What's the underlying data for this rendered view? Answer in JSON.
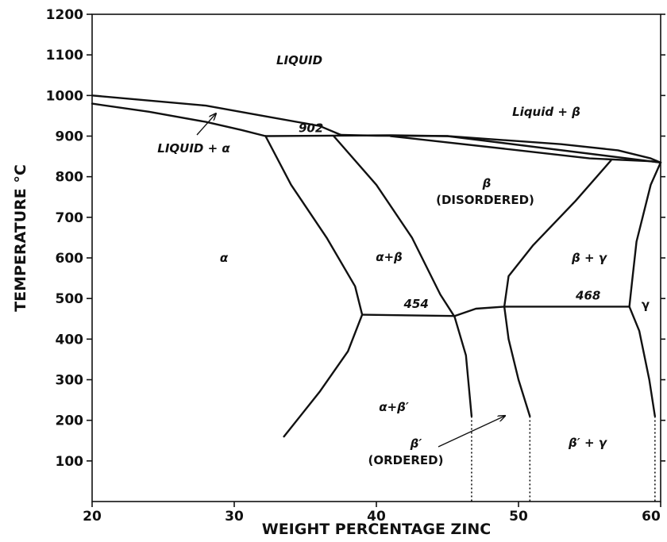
{
  "chart_data": {
    "type": "phase-diagram",
    "xlabel": "WEIGHT PERCENTAGE ZINC",
    "ylabel": "TEMPERATURE °C",
    "xlim": [
      20,
      60
    ],
    "ylim": [
      0,
      1200
    ],
    "x_ticks": [
      20,
      30,
      40,
      50,
      60
    ],
    "y_ticks": [
      100,
      200,
      300,
      400,
      500,
      600,
      700,
      800,
      900,
      1000,
      1100,
      1200
    ],
    "phase_boundaries": [
      {
        "name": "liquidus-alpha",
        "points": [
          [
            20,
            1000
          ],
          [
            28,
            975
          ],
          [
            32,
            950
          ],
          [
            36,
            925
          ],
          [
            37.5,
            903
          ]
        ]
      },
      {
        "name": "solidus-alpha",
        "points": [
          [
            20,
            980
          ],
          [
            24,
            960
          ],
          [
            28,
            935
          ],
          [
            30.5,
            915
          ],
          [
            32.2,
            900
          ]
        ]
      },
      {
        "name": "peritectic-902",
        "points": [
          [
            32.2,
            900
          ],
          [
            41,
            902
          ],
          [
            45,
            900
          ],
          [
            60,
            835
          ]
        ]
      },
      {
        "name": "liquidus-beta",
        "points": [
          [
            37.5,
            903
          ],
          [
            40,
            901
          ],
          [
            45,
            900
          ],
          [
            53,
            880
          ],
          [
            57,
            865
          ],
          [
            59.3,
            845
          ],
          [
            60,
            835
          ]
        ]
      },
      {
        "name": "beta-solidus",
        "points": [
          [
            41,
            900
          ],
          [
            50,
            865
          ],
          [
            55,
            845
          ],
          [
            59.3,
            838
          ],
          [
            60,
            835
          ]
        ]
      },
      {
        "name": "alpha-solvus",
        "points": [
          [
            32.2,
            900
          ],
          [
            34,
            780
          ],
          [
            36.5,
            650
          ],
          [
            38.5,
            530
          ],
          [
            39,
            460
          ],
          [
            38,
            370
          ],
          [
            36,
            270
          ],
          [
            33.5,
            160
          ]
        ]
      },
      {
        "name": "alpha-beta-boundary",
        "points": [
          [
            37,
            900
          ],
          [
            40,
            780
          ],
          [
            42.5,
            650
          ],
          [
            44.5,
            510
          ],
          [
            45.5,
            455
          ],
          [
            46.3,
            360
          ],
          [
            46.7,
            210
          ]
        ]
      },
      {
        "name": "beta-gamma-left",
        "points": [
          [
            56.5,
            840
          ],
          [
            54,
            740
          ],
          [
            51,
            630
          ],
          [
            49.3,
            555
          ],
          [
            49,
            480
          ],
          [
            49.3,
            400
          ],
          [
            50,
            300
          ],
          [
            50.8,
            210
          ]
        ]
      },
      {
        "name": "gamma-right",
        "points": [
          [
            60,
            835
          ],
          [
            59.3,
            780
          ],
          [
            58.3,
            640
          ],
          [
            58,
            545
          ],
          [
            57.8,
            480
          ],
          [
            58.5,
            420
          ],
          [
            59.2,
            300
          ],
          [
            59.6,
            210
          ]
        ]
      },
      {
        "name": "ordering-454",
        "points": [
          [
            39,
            460
          ],
          [
            45.5,
            457
          ],
          [
            47,
            475
          ],
          [
            49,
            480
          ]
        ]
      },
      {
        "name": "eutectoid-468",
        "points": [
          [
            49,
            480
          ],
          [
            57.8,
            480
          ]
        ]
      }
    ],
    "dotted_lines_x": [
      46.7,
      50.8,
      59.6
    ],
    "temperature_labels": [
      {
        "text": "902",
        "x": 35.4,
        "y": 910
      },
      {
        "text": "454",
        "x": 42.8,
        "y": 477
      },
      {
        "text": "468",
        "x": 54.9,
        "y": 497
      }
    ]
  },
  "labels": {
    "liquid": "LIQUID",
    "liquid_alpha": "LIQUID + α",
    "liquid_beta": "Liquid + β",
    "beta": "β",
    "disordered": "(DISORDERED)",
    "alpha": "α",
    "alpha_beta": "α+β",
    "beta_gamma": "β + γ",
    "gamma": "γ",
    "alpha_beta_prime": "α+β′",
    "beta_prime": "β′",
    "ordered": "(ORDERED)",
    "beta_prime_gamma": "β′ + γ"
  }
}
